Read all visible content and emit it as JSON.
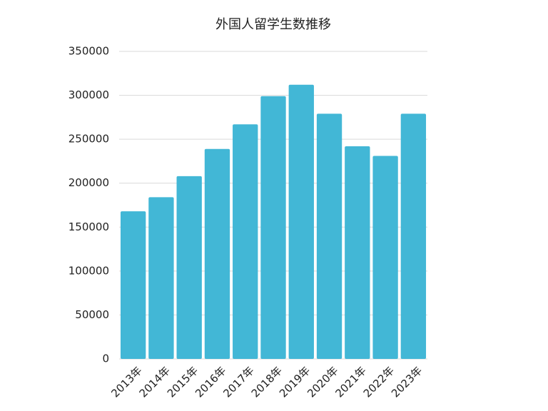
{
  "chart_data": {
    "type": "bar",
    "title": "外国人留学生数推移",
    "categories": [
      "2013年",
      "2014年",
      "2015年",
      "2016年",
      "2017年",
      "2018年",
      "2019年",
      "2020年",
      "2021年",
      "2022年",
      "2023年"
    ],
    "values": [
      168000,
      184000,
      208000,
      239000,
      267000,
      299000,
      312000,
      279000,
      242000,
      231000,
      279000
    ],
    "color": "#42b7d6",
    "ylim": [
      0,
      350000
    ],
    "yticks": [
      0,
      50000,
      100000,
      150000,
      200000,
      250000,
      300000,
      350000
    ],
    "grid": true
  }
}
